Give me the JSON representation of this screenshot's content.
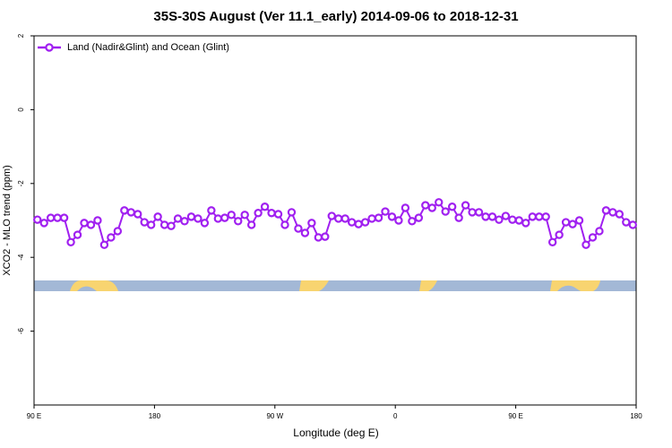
{
  "chart_data": {
    "type": "line",
    "title": "35S-30S August (Ver 11.1_early)   2014-09-06 to 2018-12-31",
    "x_label": "Longitude (deg E)",
    "y_label": "XCO2 - MLO trend (ppm)",
    "x": [
      92.5,
      97.5,
      102.5,
      107.5,
      112.5,
      117.5,
      122.5,
      127.5,
      132.5,
      137.5,
      142.5,
      147.5,
      152.5,
      157.5,
      162.5,
      167.5,
      172.5,
      177.5,
      182.5,
      187.5,
      192.5,
      197.5,
      202.5,
      207.5,
      212.5,
      217.5,
      222.5,
      227.5,
      232.5,
      237.5,
      242.5,
      247.5,
      252.5,
      257.5,
      262.5,
      267.5,
      272.5,
      277.5,
      282.5,
      287.5,
      292.5,
      297.5,
      302.5,
      307.5,
      312.5,
      317.5,
      322.5,
      327.5,
      332.5,
      337.5,
      342.5,
      347.5,
      352.5,
      357.5,
      362.5,
      367.5,
      372.5,
      377.5,
      382.5,
      387.5,
      392.5,
      397.5,
      402.5,
      407.5,
      412.5,
      417.5,
      422.5,
      427.5,
      432.5,
      437.5,
      442.5,
      447.5,
      452.5,
      457.5,
      462.5,
      467.5,
      472.5,
      477.5,
      482.5,
      487.5,
      492.5,
      497.5,
      502.5,
      507.5,
      512.5,
      517.5,
      522.5,
      527.5,
      532.5,
      537.5
    ],
    "series": [
      {
        "name": "Land (Nadir&Glint) and Ocean (Glint)",
        "color": "#a020f0",
        "values": [
          -2.98,
          -3.07,
          -2.93,
          -2.93,
          -2.93,
          -3.59,
          -3.39,
          -3.07,
          -3.12,
          -3.0,
          -3.66,
          -3.46,
          -3.29,
          -2.73,
          -2.78,
          -2.83,
          -3.05,
          -3.12,
          -2.9,
          -3.12,
          -3.15,
          -2.95,
          -3.02,
          -2.9,
          -2.95,
          -3.07,
          -2.73,
          -2.95,
          -2.93,
          -2.85,
          -3.02,
          -2.85,
          -3.12,
          -2.8,
          -2.63,
          -2.8,
          -2.83,
          -3.12,
          -2.78,
          -3.22,
          -3.34,
          -3.07,
          -3.46,
          -3.44,
          -2.88,
          -2.95,
          -2.95,
          -3.05,
          -3.1,
          -3.05,
          -2.95,
          -2.93,
          -2.76,
          -2.9,
          -3.0,
          -2.66,
          -3.02,
          -2.93,
          -2.59,
          -2.66,
          -2.51,
          -2.76,
          -2.63,
          -2.93,
          -2.59,
          -2.78,
          -2.78,
          -2.9,
          -2.9,
          -2.98,
          -2.88,
          -2.98,
          -3.0,
          -3.07,
          -2.9,
          -2.9,
          -2.9,
          -3.59,
          -3.39,
          -3.05,
          -3.1,
          -3.0,
          -3.66,
          -3.46,
          -3.29,
          -2.73,
          -2.78,
          -2.83,
          -3.05,
          -3.12
        ]
      }
    ],
    "xlim": [
      90,
      540
    ],
    "xticks": [
      {
        "value": 90,
        "label": "90 E"
      },
      180,
      {
        "value": 270,
        "label": "90 W"
      },
      {
        "value": 360,
        "label": "0"
      },
      {
        "value": 450,
        "label": "90 E"
      },
      {
        "value": 540,
        "label": "180"
      }
    ],
    "ylim": [
      -8,
      2
    ],
    "yticks": [
      2,
      0,
      -2,
      -4,
      -6
    ],
    "legend": "top-left"
  }
}
